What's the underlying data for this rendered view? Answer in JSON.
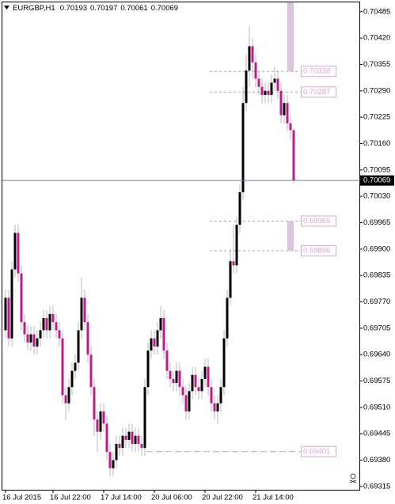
{
  "chart_data": {
    "type": "candlestick",
    "symbol": "EURGBP,H1",
    "categories": [
      "16 Jul 2015",
      null,
      null,
      null,
      null,
      null,
      null,
      null,
      null,
      null,
      null,
      null,
      null,
      null,
      null,
      "16 Jul 22:00",
      null,
      null,
      null,
      null,
      null,
      null,
      null,
      null,
      null,
      null,
      null,
      null,
      null,
      null,
      null,
      "17 Jul 14:00",
      null,
      null,
      null,
      null,
      null,
      null,
      null,
      null,
      null,
      null,
      null,
      null,
      null,
      null,
      null,
      "20 Jul 06:00",
      null,
      null,
      null,
      null,
      null,
      null,
      null,
      null,
      null,
      null,
      null,
      null,
      null,
      null,
      null,
      "20 Jul 22:00",
      null,
      null,
      null,
      null,
      null,
      null,
      null,
      null,
      null,
      null,
      null,
      null,
      null,
      null,
      null,
      "21 Jul 14:00",
      null,
      null,
      null,
      null,
      null,
      null,
      null,
      null,
      null,
      null,
      null,
      null
    ],
    "open": [
      0.697,
      0.6978,
      0.6968,
      0.6985,
      0.6994,
      0.6984,
      0.6972,
      0.6969,
      0.6967,
      0.6969,
      0.6966,
      0.6968,
      0.697,
      0.6973,
      0.697,
      0.6974,
      0.6972,
      0.697,
      0.6968,
      0.6954,
      0.6952,
      0.6956,
      0.696,
      0.6962,
      0.697,
      0.6978,
      0.6972,
      0.6964,
      0.6956,
      0.6948,
      0.6945,
      0.695,
      0.6947,
      0.694,
      0.6936,
      0.6938,
      0.6942,
      0.6941,
      0.6944,
      0.6943,
      0.6945,
      0.6942,
      0.6944,
      0.6942,
      0.6941,
      0.6956,
      0.6965,
      0.6968,
      0.6966,
      0.697,
      0.6973,
      0.6965,
      0.696,
      0.6958,
      0.6957,
      0.696,
      0.6956,
      0.6954,
      0.695,
      0.6955,
      0.6959,
      0.6956,
      0.6955,
      0.6958,
      0.6961,
      0.6956,
      0.6952,
      0.695,
      0.6952,
      0.6956,
      0.6968,
      0.6978,
      0.6987,
      0.6986,
      0.6996,
      0.7004,
      0.7026,
      0.7034,
      0.704,
      0.7036,
      0.7032,
      0.703,
      0.7028,
      0.7029,
      0.7028,
      0.7031,
      0.7032,
      0.7029,
      0.7023,
      0.7026,
      0.7021,
      0.70193
    ],
    "high": [
      0.698,
      0.698,
      0.6987,
      0.6996,
      0.6996,
      0.6986,
      0.6974,
      0.6971,
      0.6971,
      0.6971,
      0.697,
      0.6972,
      0.6975,
      0.6975,
      0.6976,
      0.6976,
      0.6974,
      0.6972,
      0.697,
      0.6956,
      0.6958,
      0.6962,
      0.6964,
      0.6972,
      0.6983,
      0.698,
      0.6974,
      0.6966,
      0.6958,
      0.695,
      0.6952,
      0.6952,
      0.6949,
      0.6942,
      0.694,
      0.6944,
      0.6944,
      0.6946,
      0.6946,
      0.6947,
      0.6947,
      0.6946,
      0.6946,
      0.6944,
      0.6958,
      0.6967,
      0.697,
      0.697,
      0.6972,
      0.6976,
      0.6975,
      0.6967,
      0.6962,
      0.696,
      0.6962,
      0.6962,
      0.6958,
      0.6956,
      0.6957,
      0.6961,
      0.6961,
      0.6958,
      0.696,
      0.6963,
      0.6963,
      0.6958,
      0.6954,
      0.6954,
      0.6958,
      0.697,
      0.698,
      0.699,
      0.6996,
      0.6998,
      0.7006,
      0.703,
      0.7038,
      0.7045,
      0.7042,
      0.7038,
      0.7034,
      0.7032,
      0.7031,
      0.7031,
      0.7033,
      0.7035,
      0.7034,
      0.7031,
      0.7028,
      0.7028,
      0.7023,
      0.70197
    ],
    "low": [
      0.6968,
      0.6966,
      0.6966,
      0.6983,
      0.6982,
      0.697,
      0.6967,
      0.6965,
      0.6965,
      0.6964,
      0.6964,
      0.6966,
      0.6968,
      0.6968,
      0.6968,
      0.697,
      0.6968,
      0.6966,
      0.6952,
      0.6948,
      0.695,
      0.6954,
      0.6958,
      0.696,
      0.6968,
      0.697,
      0.6962,
      0.6954,
      0.6944,
      0.694,
      0.6943,
      0.6945,
      0.6938,
      0.6934,
      0.6934,
      0.6936,
      0.6939,
      0.6939,
      0.6941,
      0.6941,
      0.694,
      0.694,
      0.694,
      0.6939,
      0.6939,
      0.6954,
      0.6963,
      0.6964,
      0.6964,
      0.6968,
      0.6963,
      0.6958,
      0.6956,
      0.6955,
      0.6955,
      0.6954,
      0.6952,
      0.6948,
      0.6948,
      0.6953,
      0.6954,
      0.6953,
      0.6953,
      0.6956,
      0.6954,
      0.695,
      0.6948,
      0.6947,
      0.695,
      0.6954,
      0.6966,
      0.6976,
      0.6984,
      0.6984,
      0.6994,
      0.7002,
      0.7024,
      0.703,
      0.7032,
      0.703,
      0.7028,
      0.7026,
      0.7026,
      0.7026,
      0.7026,
      0.7029,
      0.7027,
      0.7021,
      0.7021,
      0.7019,
      0.7017,
      0.70061
    ],
    "close": [
      0.6978,
      0.6968,
      0.6985,
      0.6994,
      0.6984,
      0.6972,
      0.6969,
      0.6967,
      0.6969,
      0.6966,
      0.6968,
      0.697,
      0.6973,
      0.697,
      0.6974,
      0.6972,
      0.697,
      0.6968,
      0.6954,
      0.6952,
      0.6956,
      0.696,
      0.6962,
      0.697,
      0.6978,
      0.6972,
      0.6964,
      0.6956,
      0.6948,
      0.6945,
      0.695,
      0.6947,
      0.694,
      0.6936,
      0.6938,
      0.6942,
      0.6941,
      0.6944,
      0.6943,
      0.6945,
      0.6942,
      0.6944,
      0.6942,
      0.6941,
      0.6956,
      0.6965,
      0.6968,
      0.6966,
      0.697,
      0.6973,
      0.6965,
      0.696,
      0.6958,
      0.6957,
      0.696,
      0.6956,
      0.6954,
      0.695,
      0.6955,
      0.6959,
      0.6956,
      0.6955,
      0.6958,
      0.6961,
      0.6956,
      0.6952,
      0.695,
      0.6952,
      0.6956,
      0.6968,
      0.6978,
      0.6987,
      0.6986,
      0.6996,
      0.7004,
      0.7026,
      0.7034,
      0.704,
      0.7036,
      0.7032,
      0.703,
      0.7028,
      0.7029,
      0.7028,
      0.7031,
      0.7032,
      0.7029,
      0.7023,
      0.7026,
      0.7021,
      0.70193,
      0.70069
    ],
    "up_color": "#000000",
    "down_color": "#c2188f",
    "levels": [
      0.70338,
      0.70287,
      0.69969,
      0.69896,
      0.69401
    ],
    "level_color": "#d8a8d2",
    "ylim": [
      0.69305,
      0.70508
    ],
    "yticks": [
      0.70485,
      {
        "value": 0.7042,
        "label": "0.70420"
      },
      0.70355,
      {
        "value": 0.7029,
        "label": "0.70290"
      },
      0.70225,
      {
        "value": 0.7016,
        "label": "0.70160"
      },
      0.70095,
      {
        "value": 0.7003,
        "label": "0.70030"
      },
      0.69965,
      {
        "value": 0.699,
        "label": "0.69900"
      },
      0.69835,
      {
        "value": 0.6977,
        "label": "0.69770"
      },
      0.69705,
      {
        "value": 0.6964,
        "label": "0.69640"
      },
      0.69575,
      {
        "value": 0.6951,
        "label": "0.69510"
      },
      0.69445,
      {
        "value": 0.6938,
        "label": "0.69380"
      },
      0.69315
    ]
  }
}
